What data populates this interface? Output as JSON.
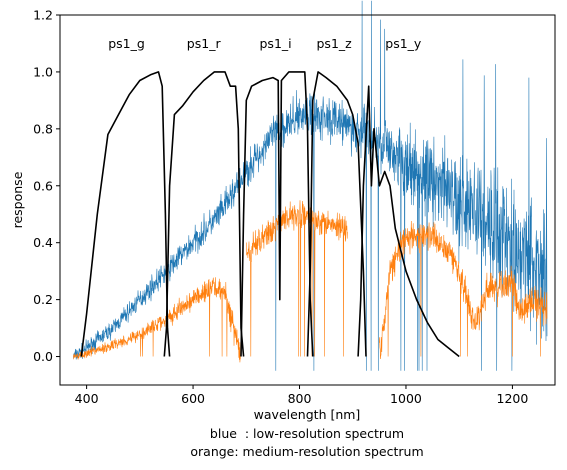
{
  "chart_data": {
    "type": "line",
    "xlabel": "wavelength [nm]",
    "ylabel": "response",
    "caption_lines": [
      "blue  : low-resolution spectrum",
      "orange: medium-resolution spectrum"
    ],
    "xlim": [
      350,
      1280
    ],
    "ylim": [
      -0.1,
      1.2
    ],
    "x_ticks": [
      400,
      600,
      800,
      1000,
      1200
    ],
    "y_ticks": [
      0.0,
      0.2,
      0.4,
      0.6,
      0.8,
      1.0,
      1.2
    ],
    "y_tick_labels": [
      "0.0",
      "0.2",
      "0.4",
      "0.6",
      "0.8",
      "1.0",
      "1.2"
    ],
    "grid": false,
    "colors": {
      "low_res": "#1f77b4",
      "medium_res": "#ff7f0e",
      "filters": "#000000"
    },
    "filter_labels": [
      {
        "text": "ps1_g",
        "x": 475,
        "y": 1.1
      },
      {
        "text": "ps1_r",
        "x": 620,
        "y": 1.1
      },
      {
        "text": "ps1_i",
        "x": 755,
        "y": 1.1
      },
      {
        "text": "ps1_z",
        "x": 865,
        "y": 1.1
      },
      {
        "text": "ps1_y",
        "x": 995,
        "y": 1.1
      }
    ],
    "series": [
      {
        "key": "low_res",
        "style": "noisy",
        "envelope": [
          [
            375,
            0.0
          ],
          [
            400,
            0.03
          ],
          [
            450,
            0.1
          ],
          [
            500,
            0.2
          ],
          [
            550,
            0.3
          ],
          [
            600,
            0.4
          ],
          [
            650,
            0.5
          ],
          [
            700,
            0.65
          ],
          [
            750,
            0.78
          ],
          [
            800,
            0.85
          ],
          [
            850,
            0.85
          ],
          [
            900,
            0.8
          ],
          [
            950,
            0.75
          ],
          [
            1000,
            0.68
          ],
          [
            1050,
            0.62
          ],
          [
            1100,
            0.55
          ],
          [
            1150,
            0.48
          ],
          [
            1200,
            0.4
          ],
          [
            1250,
            0.3
          ],
          [
            1265,
            0.25
          ]
        ],
        "noise": [
          [
            375,
            0.02
          ],
          [
            500,
            0.03
          ],
          [
            700,
            0.05
          ],
          [
            900,
            0.07
          ],
          [
            1000,
            0.1
          ],
          [
            1100,
            0.15
          ],
          [
            1265,
            0.2
          ]
        ]
      },
      {
        "key": "medium_res",
        "style": "noisy",
        "segments": [
          {
            "points": [
              [
                375,
                0.0
              ],
              [
                400,
                0.01
              ],
              [
                450,
                0.04
              ],
              [
                500,
                0.08
              ],
              [
                550,
                0.13
              ],
              [
                600,
                0.2
              ],
              [
                640,
                0.25
              ],
              [
                660,
                0.22
              ],
              [
                690,
                0.0
              ]
            ]
          },
          {
            "points": [
              [
                700,
                0.35
              ],
              [
                720,
                0.4
              ],
              [
                750,
                0.45
              ],
              [
                780,
                0.5
              ],
              [
                800,
                0.5
              ],
              [
                830,
                0.48
              ],
              [
                860,
                0.47
              ],
              [
                890,
                0.45
              ]
            ]
          },
          {
            "points": [
              [
                950,
                0.0
              ],
              [
                970,
                0.3
              ],
              [
                1000,
                0.42
              ],
              [
                1050,
                0.42
              ],
              [
                1080,
                0.38
              ],
              [
                1100,
                0.3
              ],
              [
                1130,
                0.1
              ],
              [
                1150,
                0.22
              ],
              [
                1180,
                0.25
              ],
              [
                1200,
                0.25
              ],
              [
                1220,
                0.15
              ],
              [
                1240,
                0.2
              ],
              [
                1265,
                0.18
              ]
            ]
          }
        ],
        "noise": [
          [
            375,
            0.01
          ],
          [
            700,
            0.04
          ],
          [
            1265,
            0.05
          ]
        ]
      }
    ],
    "filters": [
      {
        "name": "ps1_g",
        "points": [
          [
            390,
            0.0
          ],
          [
            400,
            0.15
          ],
          [
            420,
            0.5
          ],
          [
            440,
            0.78
          ],
          [
            460,
            0.85
          ],
          [
            480,
            0.92
          ],
          [
            500,
            0.97
          ],
          [
            520,
            0.99
          ],
          [
            535,
            1.0
          ],
          [
            542,
            0.95
          ],
          [
            548,
            0.5
          ],
          [
            552,
            0.1
          ],
          [
            556,
            0.0
          ]
        ]
      },
      {
        "name": "ps1_r",
        "points": [
          [
            546,
            0.0
          ],
          [
            550,
            0.1
          ],
          [
            556,
            0.6
          ],
          [
            565,
            0.85
          ],
          [
            580,
            0.88
          ],
          [
            600,
            0.93
          ],
          [
            620,
            0.97
          ],
          [
            640,
            1.0
          ],
          [
            660,
            1.0
          ],
          [
            670,
            0.95
          ],
          [
            680,
            0.95
          ],
          [
            685,
            0.8
          ],
          [
            690,
            0.1
          ],
          [
            695,
            0.0
          ]
        ]
      },
      {
        "name": "ps1_i",
        "points": [
          [
            690,
            0.0
          ],
          [
            695,
            0.5
          ],
          [
            700,
            0.9
          ],
          [
            710,
            0.95
          ],
          [
            730,
            0.97
          ],
          [
            750,
            0.98
          ],
          [
            760,
            0.97
          ],
          [
            763,
            0.2
          ],
          [
            766,
            0.97
          ],
          [
            780,
            1.0
          ],
          [
            800,
            1.0
          ],
          [
            810,
            1.0
          ],
          [
            815,
            0.8
          ],
          [
            820,
            0.2
          ],
          [
            825,
            0.0
          ]
        ]
      },
      {
        "name": "ps1_z",
        "points": [
          [
            815,
            0.0
          ],
          [
            820,
            0.3
          ],
          [
            825,
            0.9
          ],
          [
            835,
            1.0
          ],
          [
            850,
            0.98
          ],
          [
            870,
            0.95
          ],
          [
            890,
            0.9
          ],
          [
            900,
            0.85
          ],
          [
            910,
            0.75
          ],
          [
            920,
            0.3
          ],
          [
            925,
            0.0
          ]
        ]
      },
      {
        "name": "ps1_y",
        "points": [
          [
            910,
            0.0
          ],
          [
            915,
            0.2
          ],
          [
            920,
            0.6
          ],
          [
            930,
            0.95
          ],
          [
            935,
            0.6
          ],
          [
            940,
            0.8
          ],
          [
            950,
            0.6
          ],
          [
            960,
            0.65
          ],
          [
            970,
            0.6
          ],
          [
            980,
            0.45
          ],
          [
            1000,
            0.3
          ],
          [
            1020,
            0.2
          ],
          [
            1040,
            0.12
          ],
          [
            1060,
            0.06
          ],
          [
            1080,
            0.03
          ],
          [
            1100,
            0.0
          ]
        ]
      }
    ]
  }
}
